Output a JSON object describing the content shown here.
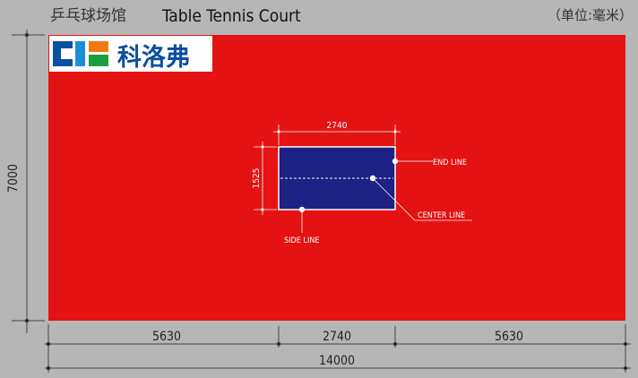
{
  "header": {
    "title_cn": "乒乓球场馆",
    "title_en": "Table Tennis Court",
    "unit": "（单位:毫米）"
  },
  "logo": {
    "text": "科洛弗",
    "colors": [
      "#0a4fa0",
      "#1a8fd8",
      "#f07a10",
      "#1aa040"
    ]
  },
  "colors": {
    "background": "#b6b6b6",
    "court": "#e41212",
    "table": "#1c2183"
  },
  "court": {
    "width_label": "14000",
    "height_label": "7000",
    "segments": [
      "5630",
      "2740",
      "5630"
    ]
  },
  "table": {
    "width_label": "2740",
    "height_label": "1525",
    "callouts": {
      "end_line": "END LINE",
      "center_line": "CENTER LINE",
      "side_line": "SIDE LINE"
    }
  }
}
